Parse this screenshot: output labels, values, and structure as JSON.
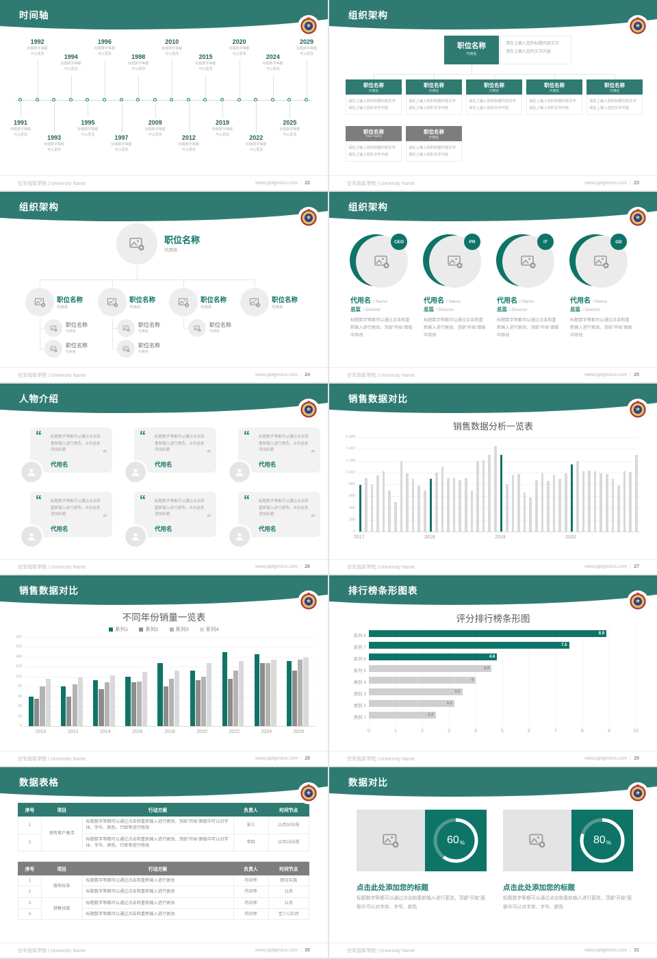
{
  "page": {
    "footer_left": "空军指挥学院 | University Name",
    "footer_site": "www.pptgenius.com",
    "divider": "|"
  },
  "colors": {
    "header": "#2f7b72",
    "accent": "#0f7468",
    "year_text": "#275f58",
    "gray_dark": "#7d7d7d",
    "bar_gray": "#d9d9d9"
  },
  "slides": {
    "s22": {
      "number": "22",
      "title": "时间轴",
      "caption": "标题数字等都\n可以更改",
      "events": [
        {
          "year": "1991"
        },
        {
          "year": "1992"
        },
        {
          "year": "1993"
        },
        {
          "year": "1994"
        },
        {
          "year": "1995"
        },
        {
          "year": "1996"
        },
        {
          "year": "1997"
        },
        {
          "year": "1998"
        },
        {
          "year": "2009"
        },
        {
          "year": "2010"
        },
        {
          "year": "2012"
        },
        {
          "year": "2015"
        },
        {
          "year": "2019"
        },
        {
          "year": "2020"
        },
        {
          "year": "2022"
        },
        {
          "year": "2024"
        },
        {
          "year": "2025"
        },
        {
          "year": "2029"
        }
      ]
    },
    "s23": {
      "number": "23",
      "title": "组织架构",
      "root": {
        "title": "职位名称",
        "subtitle": "代用名"
      },
      "desc_lines": [
        "请在上输入您的标题内容文字",
        "请在上输入您的文字内容"
      ],
      "level2": [
        {
          "title": "职位名称",
          "subtitle": "代用名"
        },
        {
          "title": "职位名称",
          "subtitle": "代用名"
        },
        {
          "title": "职位名称",
          "subtitle": "代用名"
        },
        {
          "title": "职位名称",
          "subtitle": "代用名"
        },
        {
          "title": "职位名称",
          "subtitle": "代用名"
        }
      ],
      "level3": [
        {
          "title": "职位名称",
          "subtitle": "Your Name"
        },
        {
          "title": "职位名称",
          "subtitle": "代用名"
        }
      ]
    },
    "s24": {
      "number": "24",
      "title": "组织架构",
      "root": {
        "title": "职位名称",
        "subtitle": "代用名"
      },
      "level2": [
        {
          "title": "职位名称",
          "subtitle": "代用名",
          "children": 2
        },
        {
          "title": "职位名称",
          "subtitle": "代用名",
          "children": 2
        },
        {
          "title": "职位名称",
          "subtitle": "代用名",
          "children": 1
        },
        {
          "title": "职位名称",
          "subtitle": "代用名",
          "children": 0
        }
      ],
      "child": {
        "title": "职位名称",
        "subtitle": "代用名"
      }
    },
    "s25": {
      "number": "25",
      "title": "组织架构",
      "members": [
        {
          "badge": "CEO",
          "name": "代用名",
          "name_en": "/ Name",
          "role": "总监",
          "role_en": "/ Director",
          "desc": "标题数字等都可以通过点击和重新输入进行更改，顶部“开始”面板中修改"
        },
        {
          "badge": "PR",
          "name": "代用名",
          "name_en": "/ Name",
          "role": "总监",
          "role_en": "/ Director",
          "desc": "标题数字等都可以通过点击和重新输入进行更改，顶部“开始”面板中修改"
        },
        {
          "badge": "IT",
          "name": "代用名",
          "name_en": "/ Name",
          "role": "总监",
          "role_en": "/ Director",
          "desc": "标题数字等都可以通过点击和重新输入进行更改，顶部“开始”面板中修改"
        },
        {
          "badge": "GD",
          "name": "代用名",
          "name_en": "/ Name",
          "role": "总监",
          "role_en": "/ Director",
          "desc": "标题数字等都可以通过点击和重新输入进行更改，顶部“开始”面板中修改"
        }
      ]
    },
    "s26": {
      "number": "26",
      "title": "人物介绍",
      "quote_open": "“",
      "quote_close": "”",
      "cards": [
        {
          "quote": "标题数字等都可以通过点击和重新输入进行更改，点击此处添加标题",
          "name": "代用名"
        },
        {
          "quote": "标题数字等都可以通过点击和重新输入进行更改，点击此处添加标题",
          "name": "代用名"
        },
        {
          "quote": "标题数字等都可以通过点击和重新输入进行更改，点击此处添加标题",
          "name": "代用名"
        },
        {
          "quote": "标题数字等都可以通过点击和重新输入进行更改，点击此处添加标题",
          "name": "代用名"
        },
        {
          "quote": "标题数字等都可以通过点击和重新输入进行更改，点击此处添加标题",
          "name": "代用名"
        },
        {
          "quote": "标题数字等都可以通过点击和重新输入进行更改，点击此处添加标题",
          "name": "代用名"
        }
      ]
    },
    "s27": {
      "number": "27",
      "title": "销售数据对比"
    },
    "s28": {
      "number": "28",
      "title": "销售数据对比"
    },
    "s29": {
      "number": "29",
      "title": "排行榜条形图表"
    },
    "s30": {
      "number": "30",
      "title": "数据表格",
      "headers": [
        "序号",
        "项目",
        "行动方案",
        "负责人",
        "时间节点"
      ],
      "table1": {
        "rows": [
          {
            "no": "1",
            "item": {
              "text": "保有客户激活",
              "span": 2
            },
            "plan": "标题数字等都可以通过点击和重新输入进行更改，顶部“开始”面板中可以对字体、字号、颜色、行距等进行修改",
            "owner": "张三",
            "due": "11月30日前"
          },
          {
            "no": "2",
            "plan": "标题数字等都可以通过点击和重新输入进行更改，顶部“开始”面板中可以对字体、字号、颜色、行距等进行修改",
            "owner": "李四",
            "due": "11月15日前"
          }
        ]
      },
      "table2": {
        "rows": [
          {
            "no": "1",
            "item": {
              "text": "服务标准",
              "span": 2
            },
            "plan": "标题数字等都可以通过点击和重新输入进行更改",
            "owner": "内训师",
            "due": "即日实施"
          },
          {
            "no": "2",
            "plan": "标题数字等都可以通过点击和重新输入进行更改",
            "owner": "内训师",
            "due": "11月"
          },
          {
            "no": "3",
            "item": {
              "text": "销售技能",
              "span": 2
            },
            "plan": "标题数字等都可以通过点击和重新输入进行更改",
            "owner": "内训师",
            "due": "11月"
          },
          {
            "no": "4",
            "plan": "标题数字等都可以通过点击和重新输入进行更改",
            "owner": "内训师",
            "due": "至少1次/月"
          }
        ]
      }
    },
    "s31": {
      "number": "31",
      "title": "数据对比",
      "panels": [
        {
          "percent": 60,
          "percent_label": "60",
          "unit": "%",
          "heading": "点击此处添加您的标题",
          "desc": "标题数字等都可以通过点击和重新输入进行更改，顶部“开始”面板中可以对字体、字号、颜色"
        },
        {
          "percent": 80,
          "percent_label": "80",
          "unit": "%",
          "heading": "点击此处添加您的标题",
          "desc": "标题数字等都可以通过点击和重新输入进行更改，顶部“开始”面板中可以对字体、字号、颜色"
        }
      ]
    }
  },
  "chart_data": [
    {
      "id": "sales_monthly",
      "type": "bar",
      "title": "销售数据分析一览表",
      "x_groups": [
        "2017",
        "2018",
        "2019",
        "2020"
      ],
      "values": [
        790,
        900,
        800,
        950,
        1020,
        700,
        500,
        1200,
        980,
        890,
        780,
        700,
        890,
        1000,
        1100,
        900,
        905,
        870,
        905,
        700,
        1190,
        1210,
        1300,
        1450,
        1300,
        800,
        960,
        970,
        660,
        580,
        870,
        980,
        860,
        960,
        890,
        980,
        1140,
        1200,
        1020,
        1030,
        1020,
        980,
        970,
        890,
        780,
        1020,
        1010,
        1300
      ],
      "highlight_indices": [
        0,
        12,
        24,
        36
      ],
      "highlight_color": "#0f7468",
      "bar_color": "#d9d9d9",
      "ylim": [
        0,
        1600
      ],
      "ytick": 200,
      "grid": true,
      "xlabel": "",
      "ylabel": ""
    },
    {
      "id": "yearly_sales",
      "type": "bar",
      "title": "不同年份销量一览表",
      "categories": [
        "2010",
        "2012",
        "2014",
        "2016",
        "2018",
        "2020",
        "2022",
        "2024",
        "2026"
      ],
      "series": [
        {
          "name": "系列1",
          "color": "#0f7468",
          "values": [
            60,
            80,
            93,
            100,
            128,
            112,
            150,
            145,
            132
          ]
        },
        {
          "name": "系列2",
          "color": "#8c8c8c",
          "values": [
            55,
            60,
            75,
            88,
            80,
            93,
            95,
            128,
            112
          ]
        },
        {
          "name": "系列3",
          "color": "#b3b3b3",
          "values": [
            80,
            85,
            88,
            90,
            95,
            100,
            112,
            128,
            135
          ]
        },
        {
          "name": "系列4",
          "color": "#d9d9d9",
          "values": [
            95,
            98,
            102,
            110,
            112,
            128,
            132,
            135,
            138
          ]
        }
      ],
      "ylim": [
        0,
        180
      ],
      "ytick": 20,
      "grid": true,
      "legend_position": "top"
    },
    {
      "id": "ranking",
      "type": "bar-horizontal",
      "title": "评分排行榜条形图",
      "categories": [
        "系列 8",
        "系列 7",
        "系列 6",
        "系列 5",
        "类别 4",
        "类别 3",
        "类别 2",
        "类别 1"
      ],
      "values": [
        8.9,
        7.5,
        4.8,
        4.6,
        4,
        3.5,
        3.2,
        2.5
      ],
      "value_labels": [
        "8.9",
        "7.5",
        "4.8",
        "4.6",
        "4",
        "3.5",
        "3.2",
        "2.5"
      ],
      "highlight_count": 3,
      "highlight_color": "#0f7468",
      "bar_color": "#cfcfcf",
      "xlim": [
        0,
        10
      ],
      "xtick": 1,
      "grid": true
    }
  ]
}
